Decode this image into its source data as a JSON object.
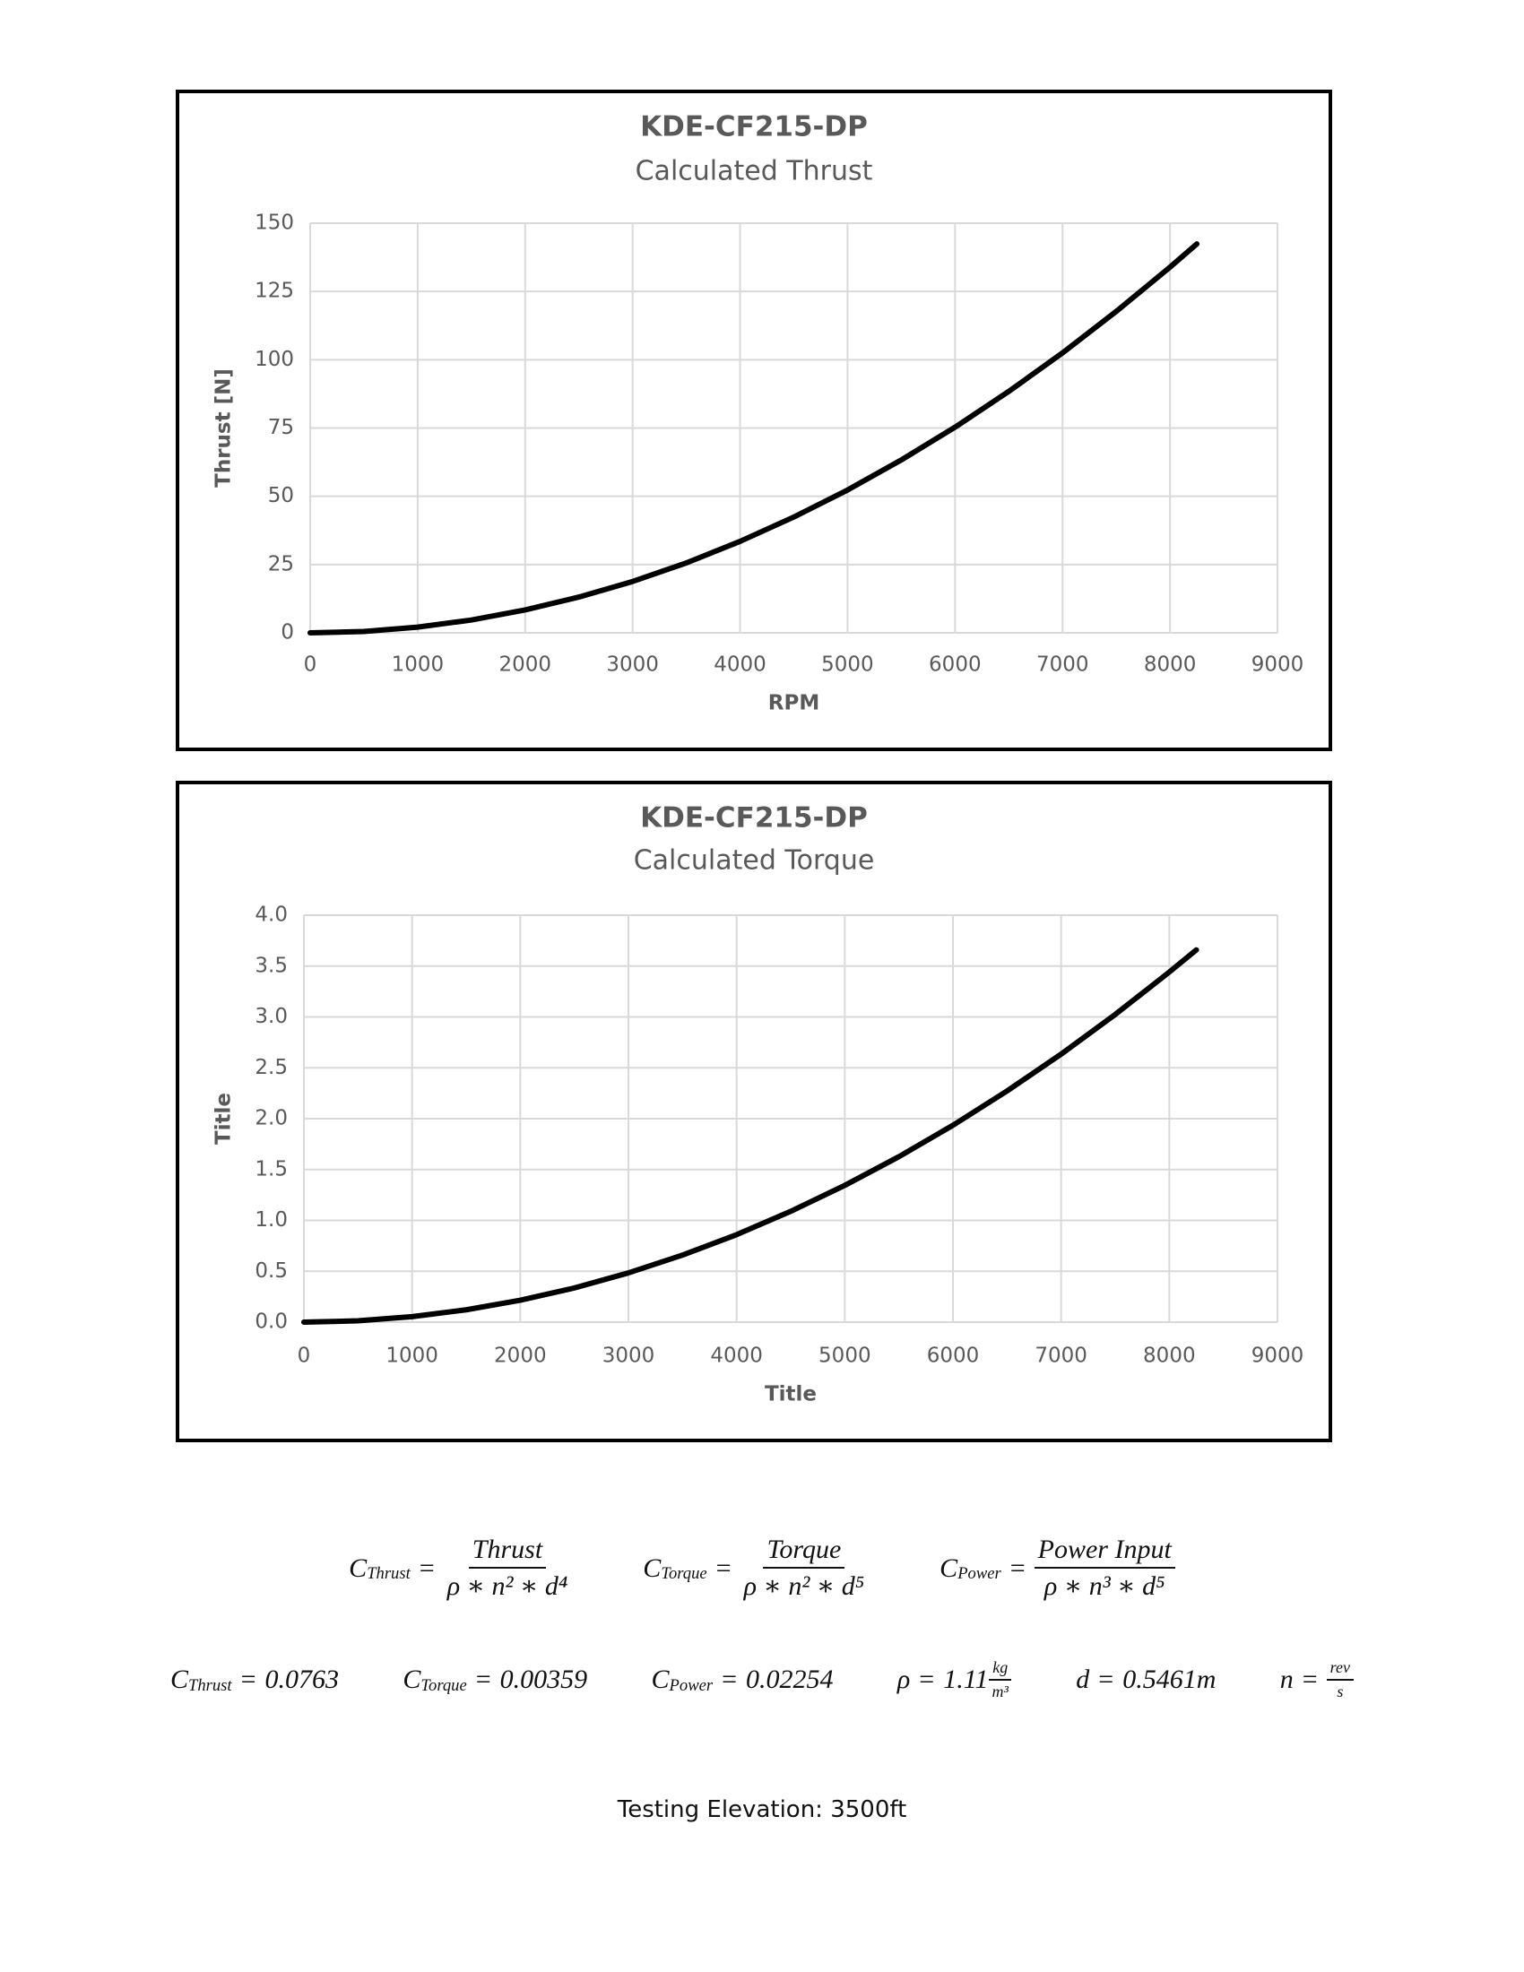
{
  "chart_data": [
    {
      "type": "line",
      "title": "KDE-CF215-DP",
      "subtitle": "Calculated Thrust",
      "x_label": "RPM",
      "y_label": "Thrust [N]",
      "x": [
        0,
        500,
        1000,
        1500,
        2000,
        2500,
        3000,
        3500,
        4000,
        4500,
        5000,
        5500,
        6000,
        6500,
        7000,
        7500,
        8000,
        8250
      ],
      "values": [
        0,
        0.5,
        2.1,
        4.7,
        8.4,
        13.1,
        18.8,
        25.6,
        33.5,
        42.4,
        52.3,
        63.3,
        75.3,
        88.4,
        102.5,
        117.7,
        133.9,
        142.4
      ],
      "color": "#000000",
      "xlim": [
        0,
        9000
      ],
      "xticks": [
        0,
        1000,
        2000,
        3000,
        4000,
        5000,
        6000,
        7000,
        8000,
        9000
      ],
      "ylim": [
        0,
        150
      ],
      "yticks": [
        0,
        25,
        50,
        75,
        100,
        125,
        150
      ],
      "grid": true
    },
    {
      "type": "line",
      "title": "KDE-CF215-DP",
      "subtitle": "Calculated Torque",
      "x_label": "Title",
      "y_label": "Title",
      "x": [
        0,
        500,
        1000,
        1500,
        2000,
        2500,
        3000,
        3500,
        4000,
        4500,
        5000,
        5500,
        6000,
        6500,
        7000,
        7500,
        8000,
        8250
      ],
      "values": [
        0,
        0.013,
        0.054,
        0.121,
        0.215,
        0.336,
        0.484,
        0.659,
        0.86,
        1.089,
        1.344,
        1.626,
        1.935,
        2.272,
        2.634,
        3.024,
        3.441,
        3.659
      ],
      "color": "#000000",
      "xlim": [
        0,
        9000
      ],
      "xticks": [
        0,
        1000,
        2000,
        3000,
        4000,
        5000,
        6000,
        7000,
        8000,
        9000
      ],
      "ylim": [
        0,
        4
      ],
      "yticks": [
        {
          "value": 0,
          "label": "0.0"
        },
        {
          "value": 0.5,
          "label": "0.5"
        },
        {
          "value": 1,
          "label": "1.0"
        },
        {
          "value": 1.5,
          "label": "1.5"
        },
        {
          "value": 2,
          "label": "2.0"
        },
        {
          "value": 2.5,
          "label": "2.5"
        },
        {
          "value": 3,
          "label": "3.0"
        },
        {
          "value": 3.5,
          "label": "3.5"
        },
        {
          "value": 4,
          "label": "4.0"
        }
      ],
      "grid": true
    }
  ],
  "formulas": [
    {
      "symbol": "C",
      "subscript": "Thrust",
      "relation": "=",
      "numerator": "Thrust",
      "denominator": "ρ ∗ n² ∗ d⁴"
    },
    {
      "symbol": "C",
      "subscript": "Torque",
      "relation": "=",
      "numerator": "Torque",
      "denominator": "ρ ∗ n² ∗ d⁵"
    },
    {
      "symbol": "C",
      "subscript": "Power",
      "relation": "=",
      "numerator": "Power Input",
      "denominator": "ρ ∗ n³ ∗ d⁵"
    }
  ],
  "constants": [
    {
      "symbol": "C",
      "subscript": "Thrust",
      "relation": "=",
      "value": "0.0763"
    },
    {
      "symbol": "C",
      "subscript": "Torque",
      "relation": "=",
      "value": "0.00359"
    },
    {
      "symbol": "C",
      "subscript": "Power",
      "relation": "=",
      "value": "0.02254"
    },
    {
      "symbol": "ρ",
      "relation": "=",
      "value": "1.11",
      "unit_numerator": "kg",
      "unit_denominator": "m³"
    },
    {
      "symbol": "d",
      "relation": "=",
      "value": "0.5461m"
    },
    {
      "symbol": "n",
      "relation": "=",
      "unit_numerator": "rev",
      "unit_denominator": "s"
    }
  ],
  "footer": "Testing Elevation: 3500ft"
}
